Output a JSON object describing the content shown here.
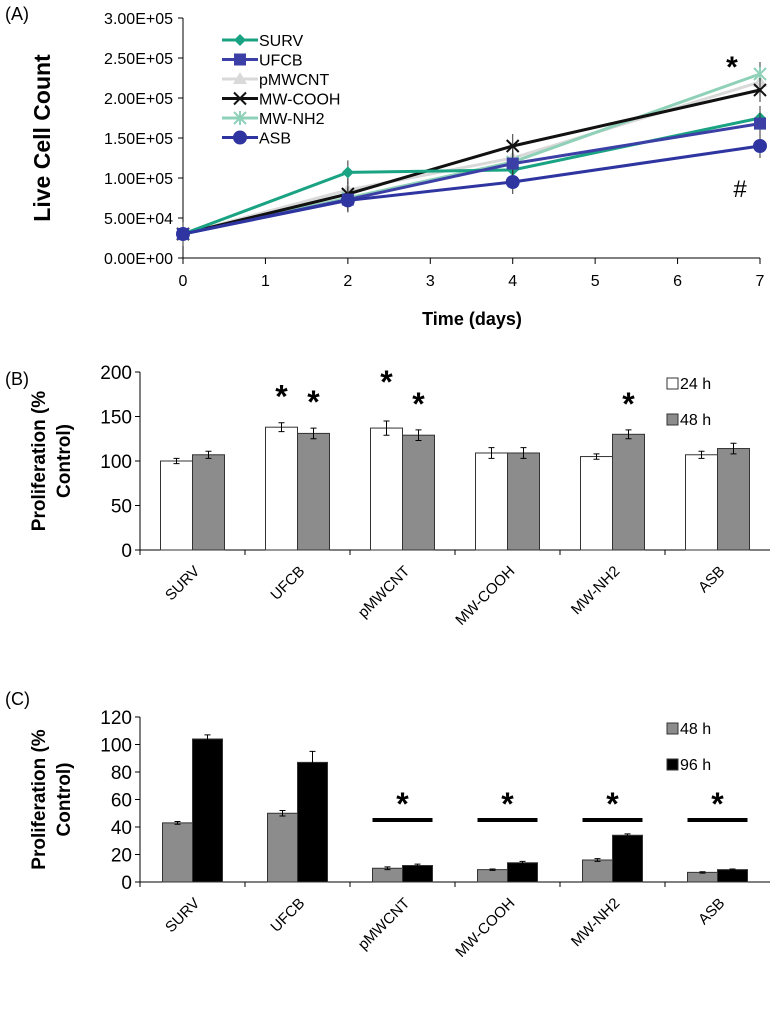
{
  "chart_data": [
    {
      "type": "line",
      "panel": "(A)",
      "xlabel": "Time (days)",
      "ylabel": "Live Cell Count",
      "xlim": [
        0,
        7
      ],
      "ylim": [
        0,
        300000
      ],
      "xticks": [
        "0",
        "1",
        "2",
        "3",
        "4",
        "5",
        "6",
        "7"
      ],
      "yticks": [
        "0.00E+00",
        "5.00E+04",
        "1.00E+05",
        "1.50E+05",
        "2.00E+05",
        "2.50E+05",
        "3.00E+05"
      ],
      "x": [
        0,
        2,
        4,
        7
      ],
      "series": [
        {
          "name": "SURV",
          "color": "#1aa383",
          "marker": "diamond",
          "values": [
            30000,
            107000,
            110000,
            175000
          ]
        },
        {
          "name": "UFCB",
          "color": "#3b3fa6",
          "marker": "square",
          "values": [
            30000,
            73000,
            118000,
            168000
          ]
        },
        {
          "name": "pMWCNT",
          "color": "#d9d9d9",
          "marker": "triangle",
          "values": [
            30000,
            85000,
            125000,
            220000
          ]
        },
        {
          "name": "MW-COOH",
          "color": "#111111",
          "marker": "x",
          "values": [
            30000,
            80000,
            140000,
            210000
          ]
        },
        {
          "name": "MW-NH2",
          "color": "#8fd0b8",
          "marker": "star",
          "values": [
            30000,
            75000,
            120000,
            230000
          ]
        },
        {
          "name": "ASB",
          "color": "#2e35a0",
          "marker": "circle",
          "values": [
            30000,
            72000,
            95000,
            140000
          ]
        }
      ],
      "annotations": [
        "*",
        "#"
      ],
      "legend": "top-left"
    },
    {
      "type": "bar",
      "panel": "(B)",
      "ylabel": "Proliferation (% Control)",
      "ylim": [
        0,
        200
      ],
      "yticks": [
        "0",
        "50",
        "100",
        "150",
        "200"
      ],
      "categories": [
        "SURV",
        "UFCB",
        "pMWCNT",
        "MW-COOH",
        "MW-NH2",
        "ASB"
      ],
      "series": [
        {
          "name": "24 h",
          "color": "#ffffff",
          "values": [
            100,
            138,
            137,
            109,
            105,
            107
          ],
          "errors": [
            3,
            5,
            8,
            6,
            3,
            4
          ],
          "stars": [
            false,
            true,
            true,
            false,
            false,
            false
          ]
        },
        {
          "name": "48 h",
          "color": "#8c8c8c",
          "values": [
            107,
            131,
            129,
            109,
            130,
            114
          ],
          "errors": [
            4,
            6,
            6,
            6,
            5,
            6
          ],
          "stars": [
            false,
            true,
            true,
            false,
            true,
            false
          ]
        }
      ],
      "star": "*",
      "legend": "top-right"
    },
    {
      "type": "bar",
      "panel": "(C)",
      "ylabel": "Proliferation (% Control)",
      "ylim": [
        0,
        120
      ],
      "yticks": [
        "0",
        "20",
        "40",
        "60",
        "80",
        "100",
        "120"
      ],
      "categories": [
        "SURV",
        "UFCB",
        "pMWCNT",
        "MW-COOH",
        "MW-NH2",
        "ASB"
      ],
      "series": [
        {
          "name": "48 h",
          "color": "#8c8c8c",
          "values": [
            43,
            50,
            10,
            9,
            16,
            7
          ],
          "errors": [
            1,
            2,
            1,
            0.5,
            1,
            0.5
          ]
        },
        {
          "name": "96 h",
          "color": "#000000",
          "values": [
            104,
            87,
            12,
            14,
            34,
            9
          ],
          "errors": [
            3,
            8,
            1,
            1,
            1,
            0.5
          ]
        }
      ],
      "significant": [
        false,
        false,
        true,
        true,
        true,
        true
      ],
      "star": "*",
      "legend": "top-right"
    }
  ]
}
